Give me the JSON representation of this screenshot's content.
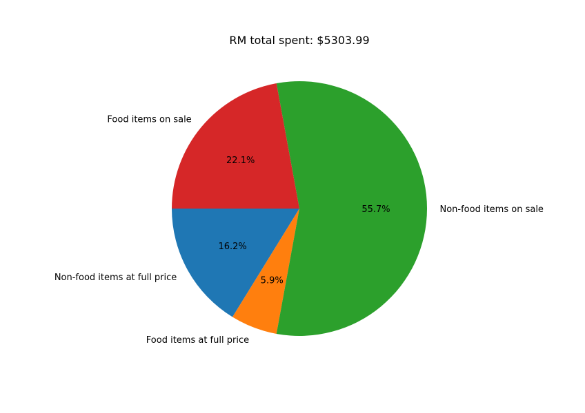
{
  "chart_data": {
    "type": "pie",
    "title": "RM total spent: $5303.99",
    "start_angle_deg": 180,
    "direction": "counterclockwise",
    "slices": [
      {
        "label": "Non-food items at full price",
        "value": 16.2,
        "pct_text": "16.2%",
        "color": "#1f77b4"
      },
      {
        "label": "Food items at full price",
        "value": 5.9,
        "pct_text": "5.9%",
        "color": "#ff7f0e"
      },
      {
        "label": "Non-food items on sale",
        "value": 55.7,
        "pct_text": "55.7%",
        "color": "#2ca02c"
      },
      {
        "label": "Food items on sale",
        "value": 22.1,
        "pct_text": "22.1%",
        "color": "#d62728"
      }
    ]
  }
}
